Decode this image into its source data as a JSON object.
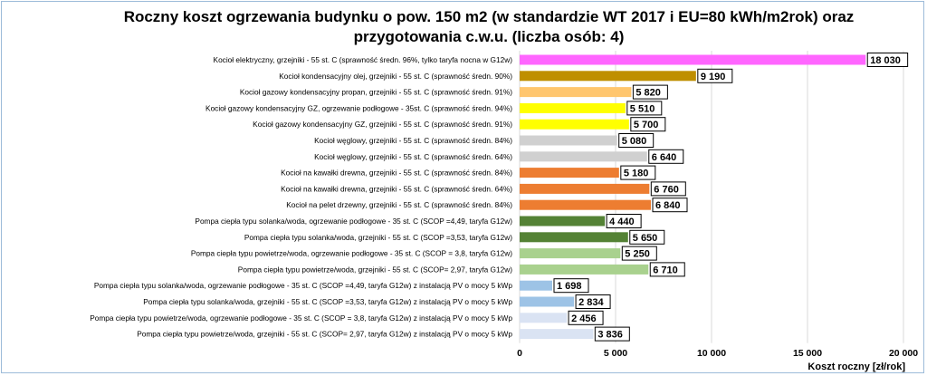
{
  "chart_data": {
    "type": "bar",
    "orientation": "horizontal",
    "title_line1": "Roczny koszt ogrzewania budynku  o pow. 150 m2 (w standardzie WT 2017 i EU=80 kWh/m2rok) oraz",
    "title_line2": "przygotowania c.w.u. (liczba osób: 4)",
    "xlabel": "Koszt roczny [zł/rok]",
    "xlim": [
      0,
      20000
    ],
    "xticks": [
      0,
      5000,
      10000,
      15000,
      20000
    ],
    "xtick_labels": [
      "0",
      "5 000",
      "10 000",
      "15 000",
      "20 000"
    ],
    "grid": "vertical",
    "categories": [
      "Kocioł elektryczny, grzejniki - 55 st. C (sprawność średn. 96%, tylko taryfa nocna w G12w)",
      "Kocioł kondensacyjny olej, grzejniki - 55 st. C (sprawność średn. 90%)",
      "Kocioł gazowy kondensacyjny propan, grzejniki - 55 st. C (sprawność średn. 91%)",
      "Kocioł gazowy kondensacyjny GZ, ogrzewanie podłogowe - 35st. C (sprawność średn. 94%)",
      "Kocioł gazowy kondensacyjny GZ, grzejniki - 55 st. C (sprawność średn. 91%)",
      "Kocioł węglowy, grzejniki - 55 st. C (sprawność średn. 84%)",
      "Kocioł węglowy, grzejniki - 55 st. C (sprawność średn. 64%)",
      "Kocioł na kawałki drewna, grzejniki - 55 st. C (sprawność średn. 84%)",
      "Kocioł na kawałki drewna, grzejniki - 55 st. C (sprawność średn. 64%)",
      "Kocioł na pelet drzewny, grzejniki - 55 st. C (sprawność średn. 84%)",
      "Pompa ciepła typu solanka/woda, ogrzewanie podłogowe - 35 st. C (SCOP =4,49, taryfa G12w)",
      "Pompa ciepła typu solanka/woda, grzejniki - 55 st. C (SCOP =3,53, taryfa G12w)",
      "Pompa ciepła typu powietrze/woda, ogrzewanie podłogowe - 35 st. C (SCOP = 3,8, taryfa G12w)",
      "Pompa ciepła typu powietrze/woda, grzejniki - 55 st. C (SCOP= 2,97, taryfa G12w)",
      "Pompa ciepła typu solanka/woda, ogrzewanie podłogowe - 35 st. C (SCOP =4,49, taryfa G12w) z instalacją PV o mocy 5 kWp",
      "Pompa ciepła typu solanka/woda, grzejniki - 55 st. C (SCOP =3,53, taryfa G12w) z instalacją PV o mocy 5 kWp",
      "Pompa ciepła typu powietrze/woda, ogrzewanie podłogowe - 35 st. C (SCOP = 3,8, taryfa G12w) z instalacją PV o mocy 5 kWp",
      "Pompa ciepła typu powietrze/woda, grzejniki - 55 st. C (SCOP= 2,97, taryfa G12w) z instalacją PV o mocy 5 kWp"
    ],
    "values": [
      18030,
      9190,
      5820,
      5510,
      5700,
      5080,
      6640,
      5180,
      6760,
      6840,
      4440,
      5650,
      5250,
      6710,
      1698,
      2834,
      2456,
      3836
    ],
    "value_labels": [
      "18 030",
      "9 190",
      "5 820",
      "5 510",
      "5 700",
      "5 080",
      "6 640",
      "5 180",
      "6 760",
      "6 840",
      "4 440",
      "5 650",
      "5 250",
      "6 710",
      "1 698",
      "2 834",
      "2 456",
      "3 836"
    ],
    "colors": [
      "#ff66ff",
      "#bf8f00",
      "#ffc66e",
      "#ffff00",
      "#ffff00",
      "#d0d0d0",
      "#d0d0d0",
      "#ed7d31",
      "#ed7d31",
      "#ed7d31",
      "#548235",
      "#548235",
      "#a9d18e",
      "#a9d18e",
      "#9dc3e6",
      "#9dc3e6",
      "#dae3f3",
      "#dae3f3"
    ]
  }
}
